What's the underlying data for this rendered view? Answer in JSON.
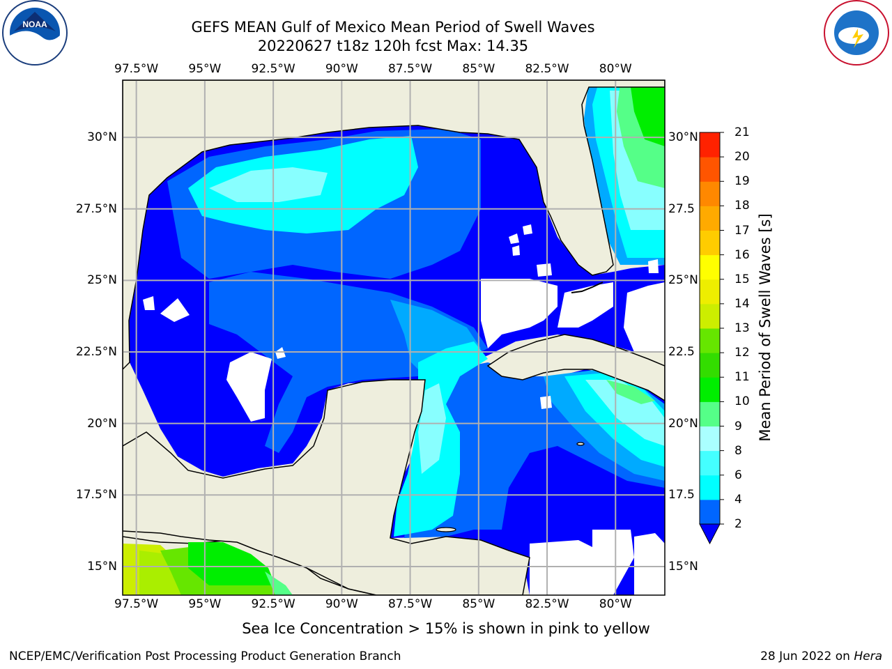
{
  "title": {
    "line1": "GEFS MEAN Gulf of Mexico Mean Period of Swell Waves",
    "line2": "20220627 t18z 120h fcst   Max: 14.35"
  },
  "map": {
    "extent_lon": [
      -98.0,
      -78.2
    ],
    "extent_lat": [
      14.0,
      32.0
    ],
    "grid": true,
    "lon_ticks": [
      {
        "lon": -97.5,
        "label": "97.5°W"
      },
      {
        "lon": -95.0,
        "label": "95°W"
      },
      {
        "lon": -92.5,
        "label": "92.5°W"
      },
      {
        "lon": -90.0,
        "label": "90°W"
      },
      {
        "lon": -87.5,
        "label": "87.5°W"
      },
      {
        "lon": -85.0,
        "label": "85°W"
      },
      {
        "lon": -82.5,
        "label": "82.5°W"
      },
      {
        "lon": -80.0,
        "label": "80°W"
      }
    ],
    "lat_ticks_left": [
      {
        "lat": 30.0,
        "label": "30°N"
      },
      {
        "lat": 27.5,
        "label": "27.5°N"
      },
      {
        "lat": 25.0,
        "label": "25°N"
      },
      {
        "lat": 22.5,
        "label": "22.5°N"
      },
      {
        "lat": 20.0,
        "label": "20°N"
      },
      {
        "lat": 17.5,
        "label": "17.5°N"
      },
      {
        "lat": 15.0,
        "label": "15°N"
      }
    ],
    "lat_ticks_right": [
      {
        "lat": 30.0,
        "label": "30°N"
      },
      {
        "lat": 27.5,
        "label": "27.5"
      },
      {
        "lat": 25.0,
        "label": "25°N"
      },
      {
        "lat": 22.5,
        "label": "22.5"
      },
      {
        "lat": 20.0,
        "label": "20°N"
      },
      {
        "lat": 17.5,
        "label": "17.5"
      },
      {
        "lat": 15.0,
        "label": "15°N"
      }
    ],
    "colors": {
      "land": "#eeeedd",
      "no_data": "#ffffff",
      "grid": "#b0b0b0",
      "coast": "#000000"
    }
  },
  "colorbar": {
    "title": "Mean Period of Swell Waves [s]",
    "labels": [
      "2",
      "4",
      "6",
      "8",
      "9",
      "10",
      "11",
      "12",
      "13",
      "14",
      "15",
      "16",
      "17",
      "18",
      "19",
      "20",
      "21"
    ],
    "levels": [
      2,
      3,
      4,
      5,
      6,
      7,
      8,
      9,
      10,
      11,
      12,
      13,
      14,
      15,
      16,
      17,
      18,
      19,
      20,
      21
    ],
    "colors": [
      "#0000ff",
      "#0066ff",
      "#00aaff",
      "#00ccff",
      "#00ffff",
      "#44ffff",
      "#88ffff",
      "#aaffee",
      "#55ff88",
      "#00ee00",
      "#33dd00",
      "#66e600",
      "#aaee00",
      "#ccee00",
      "#eeee00",
      "#ffff00",
      "#ffcc00",
      "#ffaa00",
      "#ff8800",
      "#ff5500",
      "#ff2200",
      "#ff0000"
    ],
    "extend": "min",
    "extend_color": "#0000ff"
  },
  "chart_data": {
    "type": "heatmap",
    "variable": "Mean Period of Swell Waves [s]",
    "max": 14.35,
    "regions": [
      {
        "area": "Western Gulf",
        "approx_value_s": 2.5
      },
      {
        "area": "Northern Gulf shelf",
        "approx_value_s": 6
      },
      {
        "area": "Central Gulf",
        "approx_value_s": 3.5
      },
      {
        "area": "Yucatan Channel",
        "approx_value_s": 5.5
      },
      {
        "area": "Western Caribbean",
        "approx_value_s": 3
      },
      {
        "area": "Atlantic east of Florida",
        "approx_value_s": 10
      },
      {
        "area": "Eastern Pacific off Mexico",
        "approx_value_s": 12.5
      }
    ]
  },
  "caption": "Sea Ice Concentration > 15% is shown in pink to yellow",
  "credit": "NCEP/EMC/Verification Post Processing Product Generation Branch",
  "date_text": "28 Jun 2022 on ",
  "date_host": "Hera",
  "logos": {
    "left": "noaa-logo",
    "right": "nws-logo"
  }
}
